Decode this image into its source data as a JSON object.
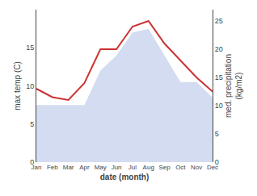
{
  "chart_data": {
    "type": "line",
    "categories": [
      "Jan",
      "Feb",
      "Mar",
      "Apr",
      "May",
      "Jun",
      "Jul",
      "Aug",
      "Sep",
      "Oct",
      "Nov",
      "Dec"
    ],
    "series": [
      {
        "type": "area",
        "color": "#b8c4e8",
        "values": [
          7.5,
          7.5,
          7.5,
          7.5,
          12.0,
          14.0,
          17.0,
          17.5,
          14.0,
          10.5,
          10.5,
          8.5
        ]
      },
      {
        "type": "line",
        "color": "#cc3333",
        "axis": "y2",
        "values": [
          13.0,
          11.5,
          11.0,
          14.0,
          20.0,
          20.0,
          24.0,
          25.0,
          21.0,
          18.0,
          15.0,
          12.5
        ]
      }
    ],
    "xlabel": "date (month)",
    "ylabel": "max temp (C)",
    "y2label": "med. precipitation\n(kg/m2)",
    "ylim": [
      0,
      20
    ],
    "yticks": [
      0,
      5,
      10,
      15
    ],
    "y2lim": [
      0,
      27
    ],
    "y2ticks": [
      0,
      5,
      10,
      15,
      20,
      25
    ],
    "grid": false
  }
}
